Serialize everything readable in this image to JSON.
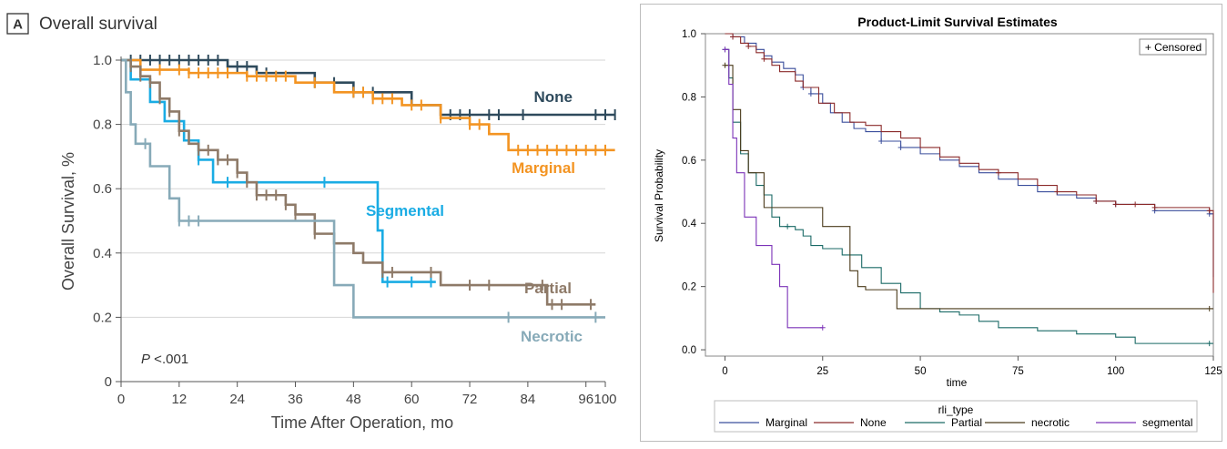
{
  "chart_data": [
    {
      "type": "line",
      "panel_letter": "A",
      "title": "Overall survival",
      "xlabel": "Time After Operation, mo",
      "ylabel": "Overall Survival, %",
      "xlim": [
        0,
        100
      ],
      "ylim": [
        0,
        1.0
      ],
      "xticks": [
        0,
        12,
        24,
        36,
        48,
        60,
        72,
        84,
        96,
        100
      ],
      "yticks": [
        0,
        0.2,
        0.4,
        0.6,
        0.8,
        1.0
      ],
      "ytick_labels": [
        "0",
        "0.2",
        "0.4",
        "0.6",
        "0.8",
        "1.0"
      ],
      "grid": true,
      "annotation": "P <.001",
      "series": [
        {
          "name": "None",
          "color": "#2e4a5c",
          "x": [
            0,
            22,
            28,
            40,
            48,
            60,
            66,
            102
          ],
          "y": [
            1.0,
            0.98,
            0.96,
            0.93,
            0.9,
            0.86,
            0.83,
            0.83
          ],
          "censor_x": [
            2,
            4,
            6,
            8,
            10,
            12,
            14,
            16,
            18,
            20,
            22,
            24,
            26,
            30,
            40,
            44,
            48,
            50,
            52,
            66,
            68,
            70,
            72,
            76,
            78,
            83,
            98,
            100,
            102
          ]
        },
        {
          "name": "Marginal",
          "color": "#f39422",
          "x": [
            0,
            4,
            14,
            26,
            36,
            44,
            52,
            58,
            66,
            72,
            76,
            80,
            102
          ],
          "y": [
            1.0,
            0.97,
            0.96,
            0.95,
            0.93,
            0.9,
            0.88,
            0.86,
            0.82,
            0.8,
            0.77,
            0.72,
            0.72
          ],
          "censor_x": [
            4,
            8,
            12,
            14,
            16,
            18,
            20,
            22,
            26,
            28,
            30,
            32,
            34,
            40,
            48,
            50,
            52,
            54,
            56,
            60,
            62,
            66,
            72,
            74,
            82,
            84,
            86,
            88,
            90,
            92,
            94,
            96,
            98,
            100
          ]
        },
        {
          "name": "Segmental",
          "color": "#1aace4",
          "x": [
            0,
            2,
            6,
            9,
            13,
            16,
            19,
            24,
            30,
            40,
            48,
            53,
            54,
            65
          ],
          "y": [
            1.0,
            0.94,
            0.87,
            0.81,
            0.75,
            0.69,
            0.62,
            0.62,
            0.62,
            0.62,
            0.62,
            0.47,
            0.31,
            0.31
          ],
          "censor_x": [
            16,
            22,
            42,
            55,
            60,
            64
          ]
        },
        {
          "name": "Partial",
          "color": "#8e7a68",
          "x": [
            0,
            2,
            4,
            6,
            8,
            10,
            12,
            14,
            16,
            20,
            24,
            26,
            28,
            34,
            36,
            40,
            44,
            48,
            50,
            54,
            58,
            62,
            66,
            72,
            78,
            82,
            88,
            98
          ],
          "y": [
            1.0,
            0.98,
            0.95,
            0.93,
            0.88,
            0.84,
            0.78,
            0.74,
            0.72,
            0.69,
            0.65,
            0.62,
            0.58,
            0.55,
            0.52,
            0.46,
            0.43,
            0.4,
            0.37,
            0.34,
            0.34,
            0.34,
            0.3,
            0.3,
            0.3,
            0.3,
            0.24,
            0.24
          ],
          "censor_x": [
            2,
            4,
            6,
            8,
            10,
            12,
            16,
            18,
            20,
            22,
            24,
            26,
            28,
            30,
            32,
            34,
            36,
            40,
            44,
            54,
            56,
            64,
            72,
            76,
            87,
            89,
            91,
            97
          ]
        },
        {
          "name": "Necrotic",
          "color": "#87aab8",
          "x": [
            0,
            1,
            2,
            3,
            6,
            10,
            12,
            44,
            48,
            60,
            100
          ],
          "y": [
            1.0,
            0.9,
            0.8,
            0.74,
            0.67,
            0.57,
            0.5,
            0.3,
            0.2,
            0.2,
            0.2
          ],
          "censor_x": [
            5,
            12,
            14,
            16,
            80,
            98
          ]
        }
      ]
    },
    {
      "type": "line",
      "title": "Product-Limit Survival Estimates",
      "xlabel": "time",
      "ylabel": "Survival Probability",
      "xlim": [
        -5,
        125
      ],
      "ylim": [
        -0.02,
        1.0
      ],
      "xticks": [
        0,
        25,
        50,
        75,
        100,
        125
      ],
      "yticks": [
        0.0,
        0.2,
        0.4,
        0.6,
        0.8,
        1.0
      ],
      "ytick_labels": [
        "0.0",
        "0.2",
        "0.4",
        "0.6",
        "0.8",
        "1.0"
      ],
      "censored_legend": "+ Censored",
      "legend_title": "rli_type",
      "grid": false,
      "series": [
        {
          "name": "Marginal",
          "color": "#3b4f9c",
          "x": [
            0,
            2,
            5,
            8,
            10,
            12,
            15,
            18,
            20,
            22,
            25,
            27,
            30,
            33,
            36,
            40,
            45,
            50,
            55,
            60,
            65,
            70,
            75,
            80,
            85,
            90,
            95,
            100,
            110,
            124,
            125
          ],
          "y": [
            1.0,
            0.99,
            0.97,
            0.95,
            0.93,
            0.91,
            0.89,
            0.87,
            0.83,
            0.81,
            0.78,
            0.75,
            0.72,
            0.7,
            0.69,
            0.66,
            0.64,
            0.62,
            0.6,
            0.58,
            0.56,
            0.54,
            0.52,
            0.5,
            0.49,
            0.48,
            0.47,
            0.46,
            0.44,
            0.43,
            0.23
          ],
          "censor_x": [
            2,
            20,
            22,
            40,
            45,
            95,
            100,
            110,
            124
          ]
        },
        {
          "name": "None",
          "color": "#8b2a2a",
          "x": [
            0,
            2,
            4,
            6,
            8,
            10,
            12,
            14,
            18,
            20,
            24,
            28,
            32,
            36,
            40,
            45,
            50,
            55,
            60,
            65,
            70,
            75,
            80,
            85,
            90,
            95,
            100,
            110,
            124,
            125
          ],
          "y": [
            1.0,
            0.99,
            0.97,
            0.96,
            0.94,
            0.92,
            0.9,
            0.88,
            0.85,
            0.83,
            0.78,
            0.75,
            0.72,
            0.71,
            0.69,
            0.67,
            0.64,
            0.61,
            0.59,
            0.57,
            0.56,
            0.54,
            0.52,
            0.5,
            0.49,
            0.47,
            0.46,
            0.45,
            0.44,
            0.18
          ],
          "censor_x": [
            2,
            6,
            10,
            70,
            85,
            95,
            100,
            105,
            110,
            124
          ]
        },
        {
          "name": "Partial",
          "color": "#1a6a66",
          "x": [
            0,
            1,
            2,
            4,
            6,
            8,
            10,
            12,
            14,
            16,
            18,
            20,
            22,
            25,
            30,
            35,
            40,
            45,
            50,
            55,
            60,
            65,
            70,
            80,
            90,
            100,
            105,
            125
          ],
          "y": [
            0.95,
            0.86,
            0.72,
            0.62,
            0.56,
            0.52,
            0.49,
            0.42,
            0.39,
            0.39,
            0.38,
            0.36,
            0.33,
            0.32,
            0.3,
            0.26,
            0.21,
            0.18,
            0.13,
            0.12,
            0.11,
            0.09,
            0.07,
            0.06,
            0.05,
            0.04,
            0.02,
            0.02
          ],
          "censor_x": [
            0,
            16,
            124
          ]
        },
        {
          "name": "necrotic",
          "color": "#4a3a1a",
          "x": [
            0,
            2,
            4,
            6,
            10,
            12,
            15,
            20,
            25,
            30,
            32,
            34,
            36,
            40,
            44,
            46,
            55,
            65,
            125
          ],
          "y": [
            0.9,
            0.76,
            0.63,
            0.56,
            0.45,
            0.45,
            0.45,
            0.45,
            0.39,
            0.39,
            0.25,
            0.2,
            0.19,
            0.19,
            0.13,
            0.13,
            0.13,
            0.13,
            0.13
          ],
          "censor_x": [
            0,
            124
          ]
        },
        {
          "name": "segmental",
          "color": "#7c33b8",
          "x": [
            0,
            1,
            2,
            3,
            5,
            8,
            10,
            12,
            14,
            16,
            25
          ],
          "y": [
            0.95,
            0.84,
            0.67,
            0.56,
            0.42,
            0.33,
            0.33,
            0.27,
            0.2,
            0.07,
            0.07
          ],
          "censor_x": [
            0,
            25
          ]
        }
      ]
    }
  ]
}
